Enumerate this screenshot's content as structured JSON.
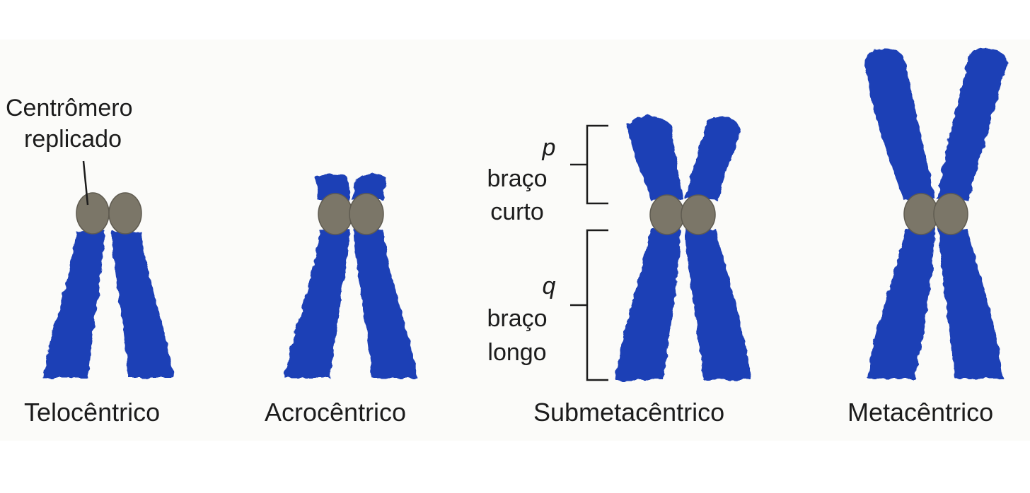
{
  "colors": {
    "chromatid": "#1f3fb6",
    "centromere": "#7b7668",
    "bracket": "#1c1c1c",
    "text": "#1c1c1c"
  },
  "callout": {
    "line1": "Centrômero",
    "line2": "replicado"
  },
  "arms": {
    "p": {
      "letter": "p",
      "line1": "braço",
      "line2": "curto"
    },
    "q": {
      "letter": "q",
      "line1": "braço",
      "line2": "longo"
    }
  },
  "chromosomes": [
    {
      "label": "Telocêntrico"
    },
    {
      "label": "Acrocêntrico"
    },
    {
      "label": "Submetacêntrico"
    },
    {
      "label": "Metacêntrico"
    }
  ]
}
